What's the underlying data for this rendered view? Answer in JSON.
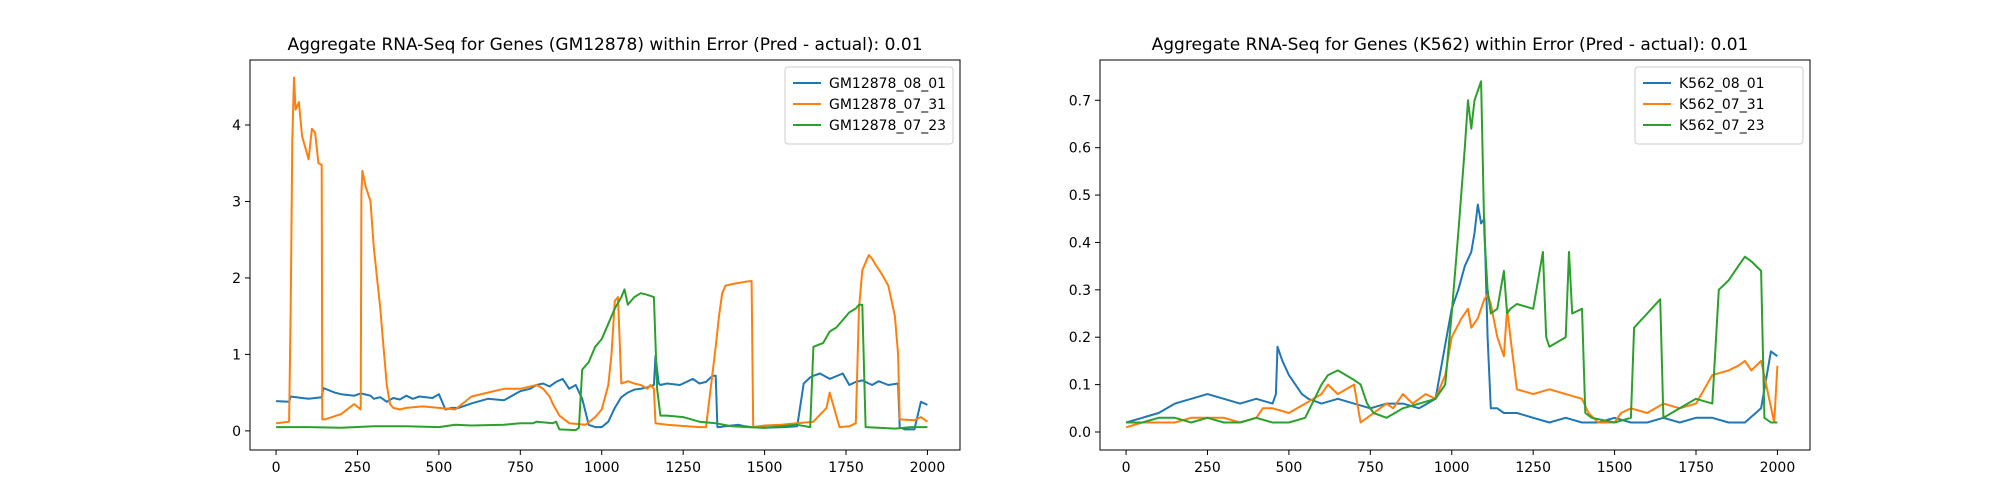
{
  "chart_data": [
    {
      "type": "line",
      "title": "Aggregate RNA-Seq for Genes (GM12878) within Error (Pred - actual): 0.01",
      "xlabel": "",
      "ylabel": "",
      "xlim": [
        -80,
        2100
      ],
      "ylim": [
        -0.25,
        4.85
      ],
      "xticks": [
        0,
        250,
        500,
        750,
        1000,
        1250,
        1500,
        1750,
        2000
      ],
      "xtick_labels": [
        "0",
        "250",
        "500",
        "750",
        "1000",
        "1250",
        "1500",
        "1750",
        "2000"
      ],
      "yticks": [
        0,
        1,
        2,
        3,
        4
      ],
      "ytick_labels": [
        "0",
        "1",
        "2",
        "3",
        "4"
      ],
      "grid": false,
      "legend_position": "top-right",
      "series": [
        {
          "name": "GM12878_08_01",
          "color": "#1f77b4",
          "x": [
            0,
            40,
            45,
            80,
            100,
            140,
            145,
            180,
            200,
            240,
            260,
            290,
            300,
            320,
            340,
            360,
            380,
            400,
            420,
            440,
            460,
            480,
            500,
            520,
            540,
            560,
            600,
            650,
            700,
            750,
            780,
            800,
            820,
            840,
            860,
            880,
            900,
            920,
            940,
            960,
            980,
            1000,
            1020,
            1040,
            1060,
            1080,
            1100,
            1120,
            1140,
            1160,
            1165,
            1175,
            1180,
            1200,
            1240,
            1280,
            1300,
            1320,
            1340,
            1350,
            1355,
            1360,
            1380,
            1400,
            1420,
            1440,
            1460,
            1500,
            1560,
            1600,
            1620,
            1640,
            1650,
            1670,
            1700,
            1740,
            1760,
            1780,
            1800,
            1830,
            1850,
            1880,
            1910,
            1915,
            1930,
            1960,
            1980,
            2000
          ],
          "y": [
            0.39,
            0.38,
            0.45,
            0.43,
            0.42,
            0.44,
            0.56,
            0.5,
            0.48,
            0.46,
            0.49,
            0.46,
            0.42,
            0.44,
            0.38,
            0.43,
            0.41,
            0.46,
            0.42,
            0.45,
            0.44,
            0.43,
            0.48,
            0.28,
            0.3,
            0.3,
            0.36,
            0.42,
            0.4,
            0.52,
            0.55,
            0.6,
            0.62,
            0.58,
            0.64,
            0.68,
            0.55,
            0.6,
            0.42,
            0.08,
            0.05,
            0.05,
            0.12,
            0.3,
            0.44,
            0.5,
            0.54,
            0.55,
            0.57,
            0.6,
            0.98,
            0.62,
            0.6,
            0.62,
            0.6,
            0.68,
            0.62,
            0.64,
            0.72,
            0.72,
            0.05,
            0.05,
            0.06,
            0.07,
            0.08,
            0.06,
            0.05,
            0.04,
            0.05,
            0.06,
            0.62,
            0.7,
            0.72,
            0.75,
            0.68,
            0.75,
            0.6,
            0.64,
            0.66,
            0.6,
            0.65,
            0.6,
            0.62,
            0.05,
            0.02,
            0.02,
            0.38,
            0.34
          ]
        },
        {
          "name": "GM12878_07_31",
          "color": "#ff7f0e",
          "x": [
            0,
            40,
            45,
            50,
            55,
            60,
            70,
            80,
            90,
            100,
            110,
            120,
            130,
            140,
            142,
            150,
            200,
            240,
            260,
            262,
            265,
            275,
            290,
            300,
            310,
            320,
            330,
            340,
            350,
            360,
            380,
            400,
            450,
            500,
            550,
            600,
            650,
            700,
            750,
            800,
            820,
            840,
            850,
            870,
            900,
            950,
            980,
            1000,
            1020,
            1030,
            1040,
            1050,
            1060,
            1080,
            1100,
            1120,
            1140,
            1150,
            1160,
            1165,
            1200,
            1260,
            1300,
            1320,
            1350,
            1360,
            1370,
            1380,
            1400,
            1440,
            1460,
            1465,
            1500,
            1550,
            1600,
            1650,
            1690,
            1700,
            1730,
            1760,
            1780,
            1790,
            1800,
            1820,
            1830,
            1840,
            1860,
            1880,
            1900,
            1910,
            1915,
            1960,
            1980,
            2000
          ],
          "y": [
            0.1,
            0.12,
            1.6,
            3.8,
            4.62,
            4.2,
            4.3,
            3.85,
            3.7,
            3.55,
            3.95,
            3.9,
            3.5,
            3.48,
            0.15,
            0.15,
            0.22,
            0.35,
            0.28,
            3.1,
            3.4,
            3.2,
            3.0,
            2.4,
            2.0,
            1.6,
            1.1,
            0.6,
            0.35,
            0.3,
            0.28,
            0.3,
            0.32,
            0.3,
            0.28,
            0.45,
            0.5,
            0.55,
            0.55,
            0.6,
            0.55,
            0.45,
            0.35,
            0.2,
            0.1,
            0.08,
            0.18,
            0.28,
            0.6,
            1.0,
            1.7,
            1.75,
            0.62,
            0.65,
            0.62,
            0.6,
            0.55,
            0.6,
            0.55,
            0.1,
            0.08,
            0.06,
            0.05,
            0.05,
            1.1,
            1.5,
            1.8,
            1.9,
            1.92,
            1.95,
            1.96,
            0.05,
            0.07,
            0.08,
            0.1,
            0.12,
            0.3,
            0.5,
            0.05,
            0.06,
            0.1,
            1.6,
            2.1,
            2.3,
            2.25,
            2.18,
            2.05,
            1.9,
            1.5,
            1.0,
            0.15,
            0.14,
            0.18,
            0.12
          ]
        },
        {
          "name": "GM12878_07_23",
          "color": "#2ca02c",
          "x": [
            0,
            100,
            200,
            300,
            400,
            500,
            550,
            600,
            700,
            750,
            790,
            800,
            850,
            860,
            870,
            920,
            930,
            940,
            960,
            980,
            1000,
            1020,
            1040,
            1060,
            1070,
            1080,
            1100,
            1120,
            1140,
            1160,
            1170,
            1180,
            1200,
            1250,
            1300,
            1350,
            1400,
            1450,
            1500,
            1550,
            1600,
            1640,
            1650,
            1680,
            1700,
            1720,
            1740,
            1760,
            1780,
            1790,
            1800,
            1810,
            1850,
            1900,
            1950,
            2000
          ],
          "y": [
            0.05,
            0.05,
            0.04,
            0.06,
            0.06,
            0.05,
            0.08,
            0.07,
            0.08,
            0.1,
            0.1,
            0.12,
            0.1,
            0.12,
            0.02,
            0.01,
            0.04,
            0.8,
            0.9,
            1.1,
            1.2,
            1.4,
            1.6,
            1.75,
            1.85,
            1.65,
            1.75,
            1.8,
            1.78,
            1.75,
            0.55,
            0.2,
            0.2,
            0.18,
            0.12,
            0.1,
            0.06,
            0.05,
            0.04,
            0.06,
            0.08,
            0.05,
            1.1,
            1.15,
            1.3,
            1.35,
            1.45,
            1.55,
            1.6,
            1.65,
            1.65,
            0.05,
            0.04,
            0.03,
            0.05,
            0.05
          ]
        }
      ]
    },
    {
      "type": "line",
      "title": "Aggregate RNA-Seq for Genes (K562) within Error (Pred - actual): 0.01",
      "xlabel": "",
      "ylabel": "",
      "xlim": [
        -80,
        2100
      ],
      "ylim": [
        -0.038,
        0.785
      ],
      "xticks": [
        0,
        250,
        500,
        750,
        1000,
        1250,
        1500,
        1750,
        2000
      ],
      "xtick_labels": [
        "0",
        "250",
        "500",
        "750",
        "1000",
        "1250",
        "1500",
        "1750",
        "2000"
      ],
      "yticks": [
        0.0,
        0.1,
        0.2,
        0.3,
        0.4,
        0.5,
        0.6,
        0.7
      ],
      "ytick_labels": [
        "0.0",
        "0.1",
        "0.2",
        "0.3",
        "0.4",
        "0.5",
        "0.6",
        "0.7"
      ],
      "grid": false,
      "legend_position": "top-right",
      "series": [
        {
          "name": "K562_08_01",
          "color": "#1f77b4",
          "x": [
            0,
            50,
            100,
            150,
            200,
            250,
            300,
            350,
            400,
            450,
            460,
            465,
            480,
            500,
            520,
            540,
            560,
            600,
            650,
            700,
            750,
            800,
            850,
            900,
            950,
            1000,
            1020,
            1040,
            1060,
            1070,
            1080,
            1090,
            1100,
            1110,
            1120,
            1140,
            1160,
            1200,
            1250,
            1300,
            1350,
            1400,
            1450,
            1500,
            1550,
            1600,
            1650,
            1700,
            1750,
            1800,
            1850,
            1900,
            1950,
            1980,
            2000
          ],
          "y": [
            0.02,
            0.03,
            0.04,
            0.06,
            0.07,
            0.08,
            0.07,
            0.06,
            0.07,
            0.06,
            0.08,
            0.18,
            0.15,
            0.12,
            0.1,
            0.08,
            0.07,
            0.06,
            0.07,
            0.06,
            0.05,
            0.06,
            0.06,
            0.05,
            0.07,
            0.26,
            0.3,
            0.35,
            0.38,
            0.42,
            0.48,
            0.44,
            0.45,
            0.2,
            0.05,
            0.05,
            0.04,
            0.04,
            0.03,
            0.02,
            0.03,
            0.02,
            0.02,
            0.03,
            0.02,
            0.02,
            0.03,
            0.02,
            0.03,
            0.03,
            0.02,
            0.02,
            0.05,
            0.17,
            0.16
          ]
        },
        {
          "name": "K562_07_31",
          "color": "#ff7f0e",
          "x": [
            0,
            50,
            100,
            150,
            200,
            250,
            300,
            350,
            400,
            420,
            450,
            500,
            550,
            600,
            620,
            650,
            700,
            720,
            740,
            760,
            800,
            820,
            850,
            880,
            900,
            920,
            950,
            980,
            1000,
            1030,
            1050,
            1060,
            1080,
            1100,
            1110,
            1120,
            1140,
            1160,
            1170,
            1180,
            1200,
            1250,
            1300,
            1350,
            1400,
            1420,
            1450,
            1500,
            1520,
            1550,
            1600,
            1650,
            1700,
            1750,
            1800,
            1850,
            1880,
            1900,
            1920,
            1950,
            1990,
            2000
          ],
          "y": [
            0.01,
            0.02,
            0.02,
            0.02,
            0.03,
            0.03,
            0.03,
            0.02,
            0.03,
            0.05,
            0.05,
            0.04,
            0.06,
            0.08,
            0.1,
            0.08,
            0.1,
            0.02,
            0.03,
            0.04,
            0.06,
            0.05,
            0.08,
            0.06,
            0.07,
            0.08,
            0.07,
            0.12,
            0.2,
            0.24,
            0.26,
            0.22,
            0.24,
            0.28,
            0.29,
            0.27,
            0.2,
            0.16,
            0.26,
            0.2,
            0.09,
            0.08,
            0.09,
            0.08,
            0.07,
            0.04,
            0.02,
            0.02,
            0.04,
            0.05,
            0.04,
            0.06,
            0.05,
            0.06,
            0.12,
            0.13,
            0.14,
            0.15,
            0.13,
            0.15,
            0.02,
            0.14
          ]
        },
        {
          "name": "K562_07_23",
          "color": "#2ca02c",
          "x": [
            0,
            50,
            100,
            150,
            200,
            250,
            300,
            350,
            400,
            450,
            500,
            550,
            600,
            620,
            650,
            700,
            720,
            740,
            760,
            800,
            850,
            900,
            950,
            980,
            1000,
            1020,
            1040,
            1050,
            1060,
            1070,
            1080,
            1090,
            1100,
            1110,
            1120,
            1140,
            1160,
            1170,
            1180,
            1200,
            1250,
            1280,
            1290,
            1300,
            1350,
            1360,
            1370,
            1400,
            1410,
            1430,
            1500,
            1550,
            1560,
            1600,
            1640,
            1650,
            1700,
            1750,
            1800,
            1820,
            1850,
            1880,
            1900,
            1920,
            1950,
            1960,
            1980,
            2000
          ],
          "y": [
            0.02,
            0.02,
            0.03,
            0.03,
            0.02,
            0.03,
            0.02,
            0.02,
            0.03,
            0.02,
            0.02,
            0.03,
            0.1,
            0.12,
            0.13,
            0.11,
            0.1,
            0.06,
            0.04,
            0.03,
            0.05,
            0.06,
            0.07,
            0.1,
            0.25,
            0.42,
            0.6,
            0.7,
            0.64,
            0.7,
            0.72,
            0.74,
            0.42,
            0.3,
            0.25,
            0.26,
            0.34,
            0.25,
            0.26,
            0.27,
            0.26,
            0.38,
            0.2,
            0.18,
            0.2,
            0.38,
            0.25,
            0.26,
            0.04,
            0.03,
            0.02,
            0.03,
            0.22,
            0.25,
            0.28,
            0.03,
            0.05,
            0.07,
            0.06,
            0.3,
            0.32,
            0.35,
            0.37,
            0.36,
            0.34,
            0.03,
            0.02,
            0.02
          ]
        }
      ]
    }
  ]
}
